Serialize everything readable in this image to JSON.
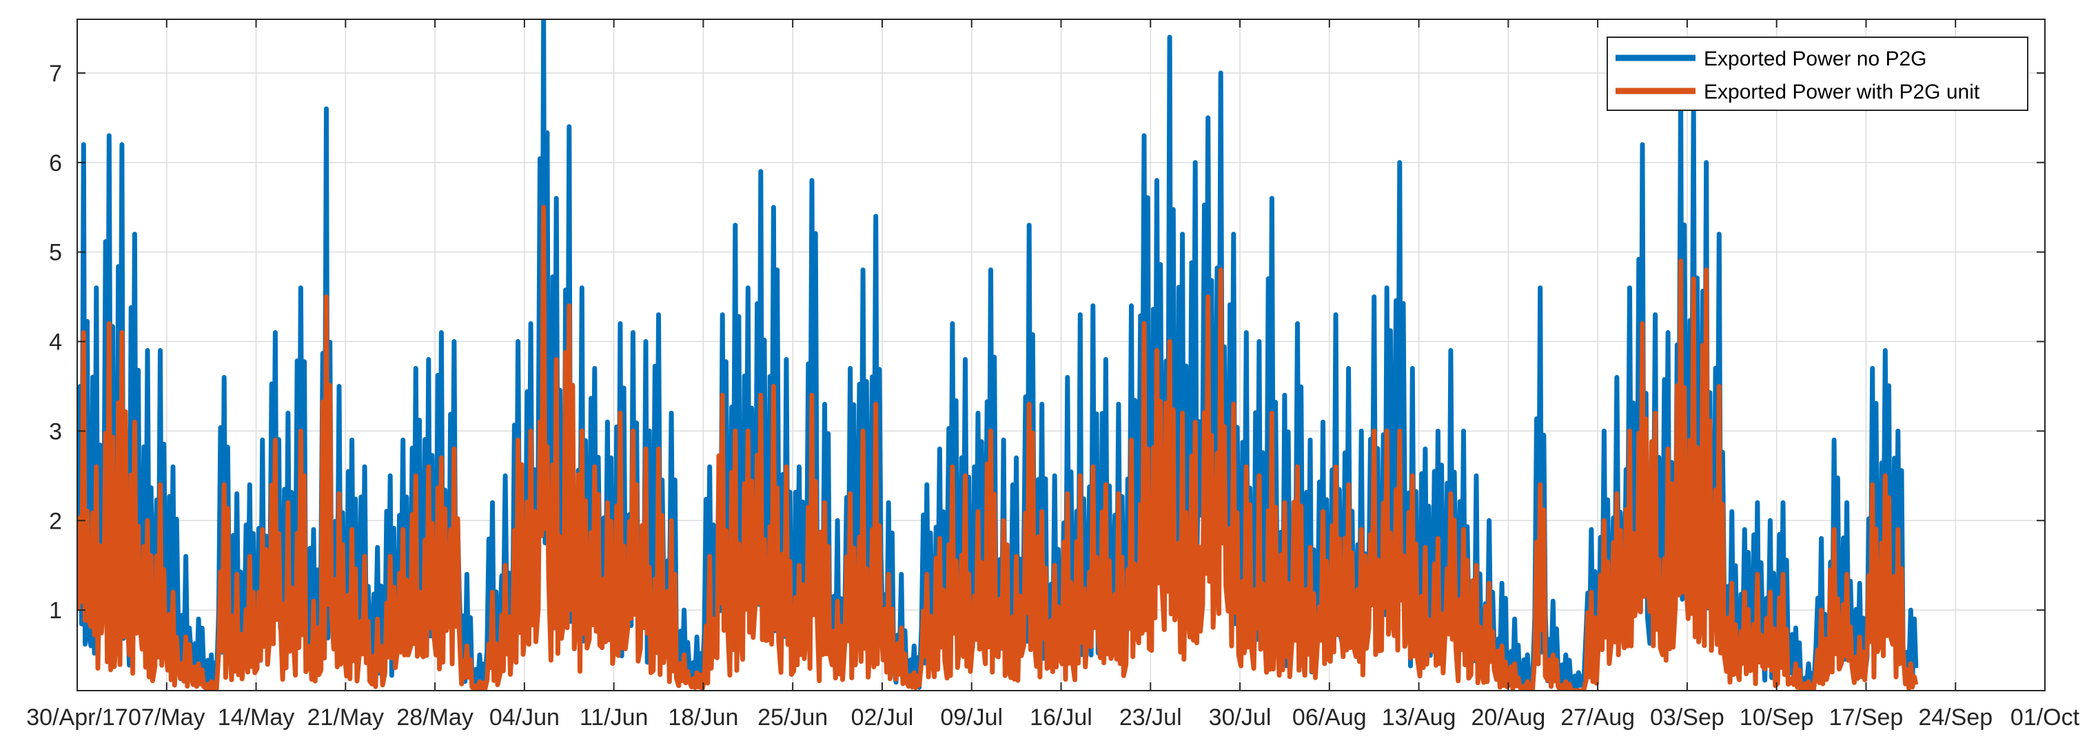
{
  "chart_data": {
    "type": "line",
    "title": "",
    "xlabel": "",
    "ylabel": "",
    "xlim": [
      "2017-04-30",
      "2017-10-01"
    ],
    "ylim": [
      0.1,
      7.6
    ],
    "grid": true,
    "legend_position": "top-right",
    "x_ticks": [
      "30/Apr/17",
      "07/May",
      "14/May",
      "21/May",
      "28/May",
      "04/Jun",
      "11/Jun",
      "18/Jun",
      "25/Jun",
      "02/Jul",
      "09/Jul",
      "16/Jul",
      "23/Jul",
      "30/Jul",
      "06/Aug",
      "13/Aug",
      "20/Aug",
      "27/Aug",
      "03/Sep",
      "10/Sep",
      "17/Sep",
      "24/Sep",
      "01/Oct"
    ],
    "y_ticks": [
      1,
      2,
      3,
      4,
      5,
      6,
      7
    ],
    "series": [
      {
        "name": "Exported Power no P2G",
        "color": "#0072BD",
        "daily_peak": [
          6.2,
          4.6,
          6.3,
          6.2,
          5.2,
          3.9,
          3.9,
          2.6,
          1.6,
          0.9,
          0.5,
          3.6,
          2.3,
          2.4,
          2.9,
          4.1,
          3.2,
          4.6,
          1.9,
          6.6,
          3.5,
          2.9,
          2.6,
          1.7,
          2.5,
          2.9,
          3.7,
          3.8,
          4.1,
          4.0,
          1.4,
          0.5,
          2.2,
          2.5,
          4.0,
          4.2,
          7.6,
          5.6,
          6.4,
          4.6,
          3.7,
          3.1,
          4.2,
          4.1,
          4.0,
          4.3,
          3.2,
          1.0,
          0.7,
          2.6,
          4.3,
          5.3,
          4.6,
          5.9,
          5.5,
          3.8,
          2.6,
          5.8,
          3.3,
          2.0,
          3.7,
          4.8,
          5.4,
          2.2,
          1.4,
          0.6,
          2.4,
          2.8,
          4.2,
          3.8,
          3.2,
          4.8,
          2.9,
          2.7,
          5.3,
          3.3,
          2.5,
          3.6,
          4.3,
          4.4,
          3.8,
          3.3,
          4.4,
          6.3,
          5.8,
          7.4,
          5.2,
          6.0,
          6.5,
          7.0,
          5.2,
          4.1,
          4.0,
          5.6,
          3.4,
          4.2,
          2.9,
          3.1,
          4.3,
          3.7,
          3.0,
          4.5,
          4.6,
          6.0,
          3.7,
          2.8,
          3.0,
          3.9,
          3.0,
          2.5,
          2.0,
          1.3,
          0.9,
          0.5,
          4.6,
          1.1,
          0.5,
          0.3,
          1.9,
          3.0,
          3.6,
          4.6,
          6.2,
          4.3,
          4.1,
          6.8,
          6.6,
          6.0,
          5.2,
          2.1,
          1.9,
          2.2,
          2.0,
          2.2,
          0.8,
          0.4,
          1.8,
          2.9,
          2.2,
          1.3,
          3.7,
          3.9,
          3.0,
          1.0
        ],
        "daily_trough": [
          0.2,
          0.1,
          0.3,
          0.2,
          0.1,
          0.3,
          0.5,
          0.2,
          0.1,
          0.1,
          0.1,
          0.2,
          0.3,
          0.2,
          0.3,
          0.5,
          0.3,
          0.1,
          0.2,
          0.1,
          0.3,
          0.1,
          0.1,
          0.2,
          0.1,
          0.4,
          0.3,
          0.1,
          0.3,
          0.2,
          0.1,
          0.1,
          0.2,
          0.3,
          0.5,
          0.9,
          1.3,
          0.4,
          0.2,
          0.3,
          0.6,
          0.4,
          0.2,
          0.3,
          0.1,
          0.2,
          0.2,
          0.1,
          0.1,
          0.2,
          0.4,
          0.3,
          0.5,
          0.6,
          0.4,
          0.3,
          0.2,
          0.3,
          0.2,
          0.1,
          0.2,
          0.3,
          0.4,
          0.1,
          0.1,
          0.1,
          0.2,
          0.3,
          0.3,
          0.2,
          0.4,
          0.3,
          0.2,
          0.1,
          0.4,
          0.2,
          0.1,
          0.3,
          0.2,
          0.2,
          0.5,
          0.1,
          0.5,
          0.7,
          0.6,
          0.8,
          0.4,
          0.5,
          1.3,
          1.2,
          0.5,
          0.2,
          0.3,
          0.3,
          0.2,
          0.3,
          0.1,
          0.2,
          0.5,
          0.4,
          0.3,
          0.6,
          0.5,
          0.8,
          0.2,
          0.1,
          0.2,
          0.4,
          0.3,
          0.1,
          0.1,
          0.1,
          0.1,
          0.1,
          0.2,
          0.1,
          0.1,
          0.1,
          0.3,
          0.4,
          0.6,
          0.5,
          0.4,
          0.3,
          0.2,
          0.8,
          0.9,
          0.5,
          0.4,
          0.1,
          0.2,
          0.3,
          0.1,
          0.2,
          0.1,
          0.1,
          0.2,
          0.2,
          0.2,
          0.1,
          0.3,
          0.3,
          0.2,
          0.1
        ]
      },
      {
        "name": "Exported Power with P2G unit",
        "color": "#D95319",
        "daily_peak": [
          4.1,
          2.6,
          4.2,
          4.1,
          3.1,
          2.0,
          2.4,
          1.2,
          0.7,
          0.4,
          0.2,
          2.4,
          1.4,
          1.6,
          1.9,
          2.9,
          2.2,
          3.0,
          1.1,
          4.5,
          2.3,
          1.9,
          1.6,
          0.9,
          1.6,
          1.9,
          2.5,
          2.6,
          2.7,
          2.8,
          0.6,
          0.2,
          1.2,
          1.5,
          2.9,
          3.0,
          5.5,
          3.8,
          4.4,
          3.0,
          2.6,
          2.2,
          3.2,
          3.0,
          2.8,
          2.8,
          2.0,
          0.5,
          0.3,
          1.6,
          3.4,
          3.0,
          3.0,
          3.4,
          3.5,
          2.6,
          1.5,
          3.4,
          2.2,
          1.1,
          2.3,
          3.0,
          3.3,
          1.4,
          0.8,
          0.3,
          1.4,
          1.8,
          2.6,
          2.5,
          2.1,
          3.0,
          2.0,
          1.6,
          3.3,
          2.1,
          1.5,
          2.3,
          2.5,
          2.6,
          2.4,
          2.3,
          2.9,
          4.2,
          3.9,
          4.0,
          3.2,
          3.1,
          4.5,
          4.8,
          3.3,
          2.6,
          2.5,
          3.2,
          2.2,
          2.6,
          1.7,
          2.1,
          2.6,
          2.4,
          1.9,
          3.0,
          3.0,
          3.0,
          2.5,
          1.7,
          1.8,
          2.3,
          1.9,
          1.5,
          1.3,
          0.6,
          0.4,
          0.2,
          2.4,
          0.5,
          0.2,
          0.1,
          1.2,
          2.0,
          2.3,
          3.0,
          4.2,
          3.2,
          2.8,
          4.9,
          4.7,
          4.8,
          3.5,
          1.3,
          1.2,
          1.4,
          1.2,
          1.4,
          0.4,
          0.2,
          1.0,
          1.9,
          1.4,
          0.7,
          2.4,
          2.5,
          1.9,
          0.4
        ],
        "daily_trough": [
          0.1,
          0.1,
          0.1,
          0.1,
          0.1,
          0.1,
          0.2,
          0.1,
          0.1,
          0.1,
          0.1,
          0.1,
          0.1,
          0.1,
          0.1,
          0.2,
          0.1,
          0.1,
          0.1,
          0.1,
          0.1,
          0.1,
          0.1,
          0.1,
          0.1,
          0.2,
          0.1,
          0.1,
          0.1,
          0.1,
          0.1,
          0.1,
          0.1,
          0.1,
          0.2,
          0.4,
          0.6,
          0.2,
          0.1,
          0.1,
          0.3,
          0.2,
          0.1,
          0.1,
          0.1,
          0.1,
          0.1,
          0.1,
          0.1,
          0.1,
          0.2,
          0.1,
          0.2,
          0.3,
          0.2,
          0.1,
          0.1,
          0.1,
          0.1,
          0.1,
          0.1,
          0.1,
          0.2,
          0.1,
          0.1,
          0.1,
          0.1,
          0.1,
          0.1,
          0.1,
          0.2,
          0.1,
          0.1,
          0.1,
          0.2,
          0.1,
          0.1,
          0.1,
          0.1,
          0.1,
          0.2,
          0.1,
          0.2,
          0.3,
          0.3,
          0.4,
          0.2,
          0.2,
          0.6,
          0.6,
          0.2,
          0.1,
          0.1,
          0.1,
          0.1,
          0.1,
          0.1,
          0.1,
          0.2,
          0.2,
          0.1,
          0.3,
          0.2,
          0.4,
          0.1,
          0.1,
          0.1,
          0.2,
          0.1,
          0.1,
          0.1,
          0.1,
          0.1,
          0.1,
          0.1,
          0.1,
          0.1,
          0.1,
          0.1,
          0.2,
          0.3,
          0.2,
          0.2,
          0.1,
          0.1,
          0.4,
          0.4,
          0.2,
          0.2,
          0.1,
          0.1,
          0.1,
          0.1,
          0.1,
          0.1,
          0.1,
          0.1,
          0.1,
          0.1,
          0.1,
          0.1,
          0.1,
          0.1,
          0.1
        ]
      }
    ]
  }
}
